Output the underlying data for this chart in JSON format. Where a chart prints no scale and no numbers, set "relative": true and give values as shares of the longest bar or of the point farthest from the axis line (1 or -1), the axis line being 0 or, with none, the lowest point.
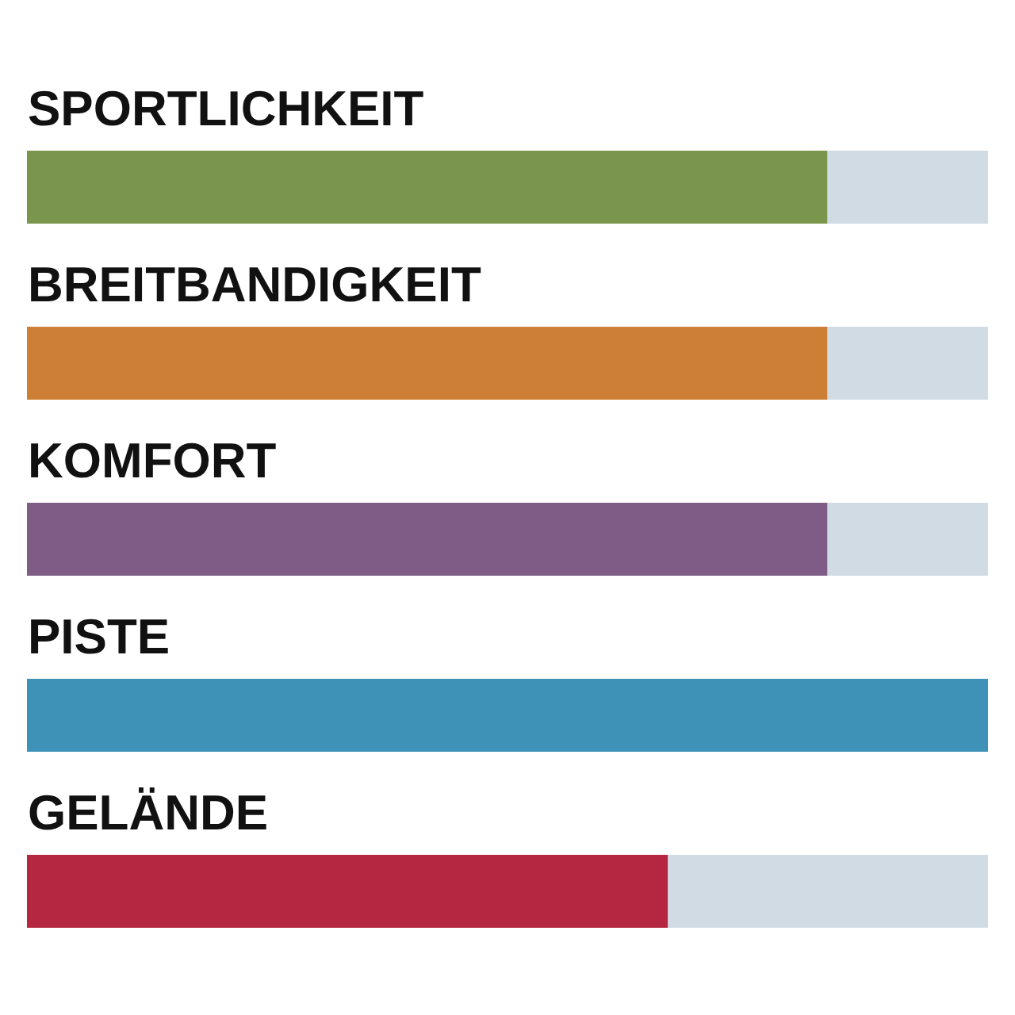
{
  "chart_data": {
    "type": "bar",
    "orientation": "horizontal",
    "stacked": true,
    "relative": true,
    "categories": [
      "SPORTLICHKEIT",
      "BREITBANDIGKEIT",
      "KOMFORT",
      "PISTE",
      "GELÄNDE"
    ],
    "series": [
      {
        "colors": [
          "#7a964c",
          "#cd7f35",
          "#7e5c86",
          "#3f92b7",
          "#b52740"
        ],
        "values": [
          0.833,
          0.833,
          0.833,
          1,
          0.667
        ]
      },
      {
        "color": "#d0dbe3",
        "values": [
          0.167,
          0.167,
          0.167,
          0,
          0.333
        ]
      }
    ],
    "data_labels": false
  }
}
